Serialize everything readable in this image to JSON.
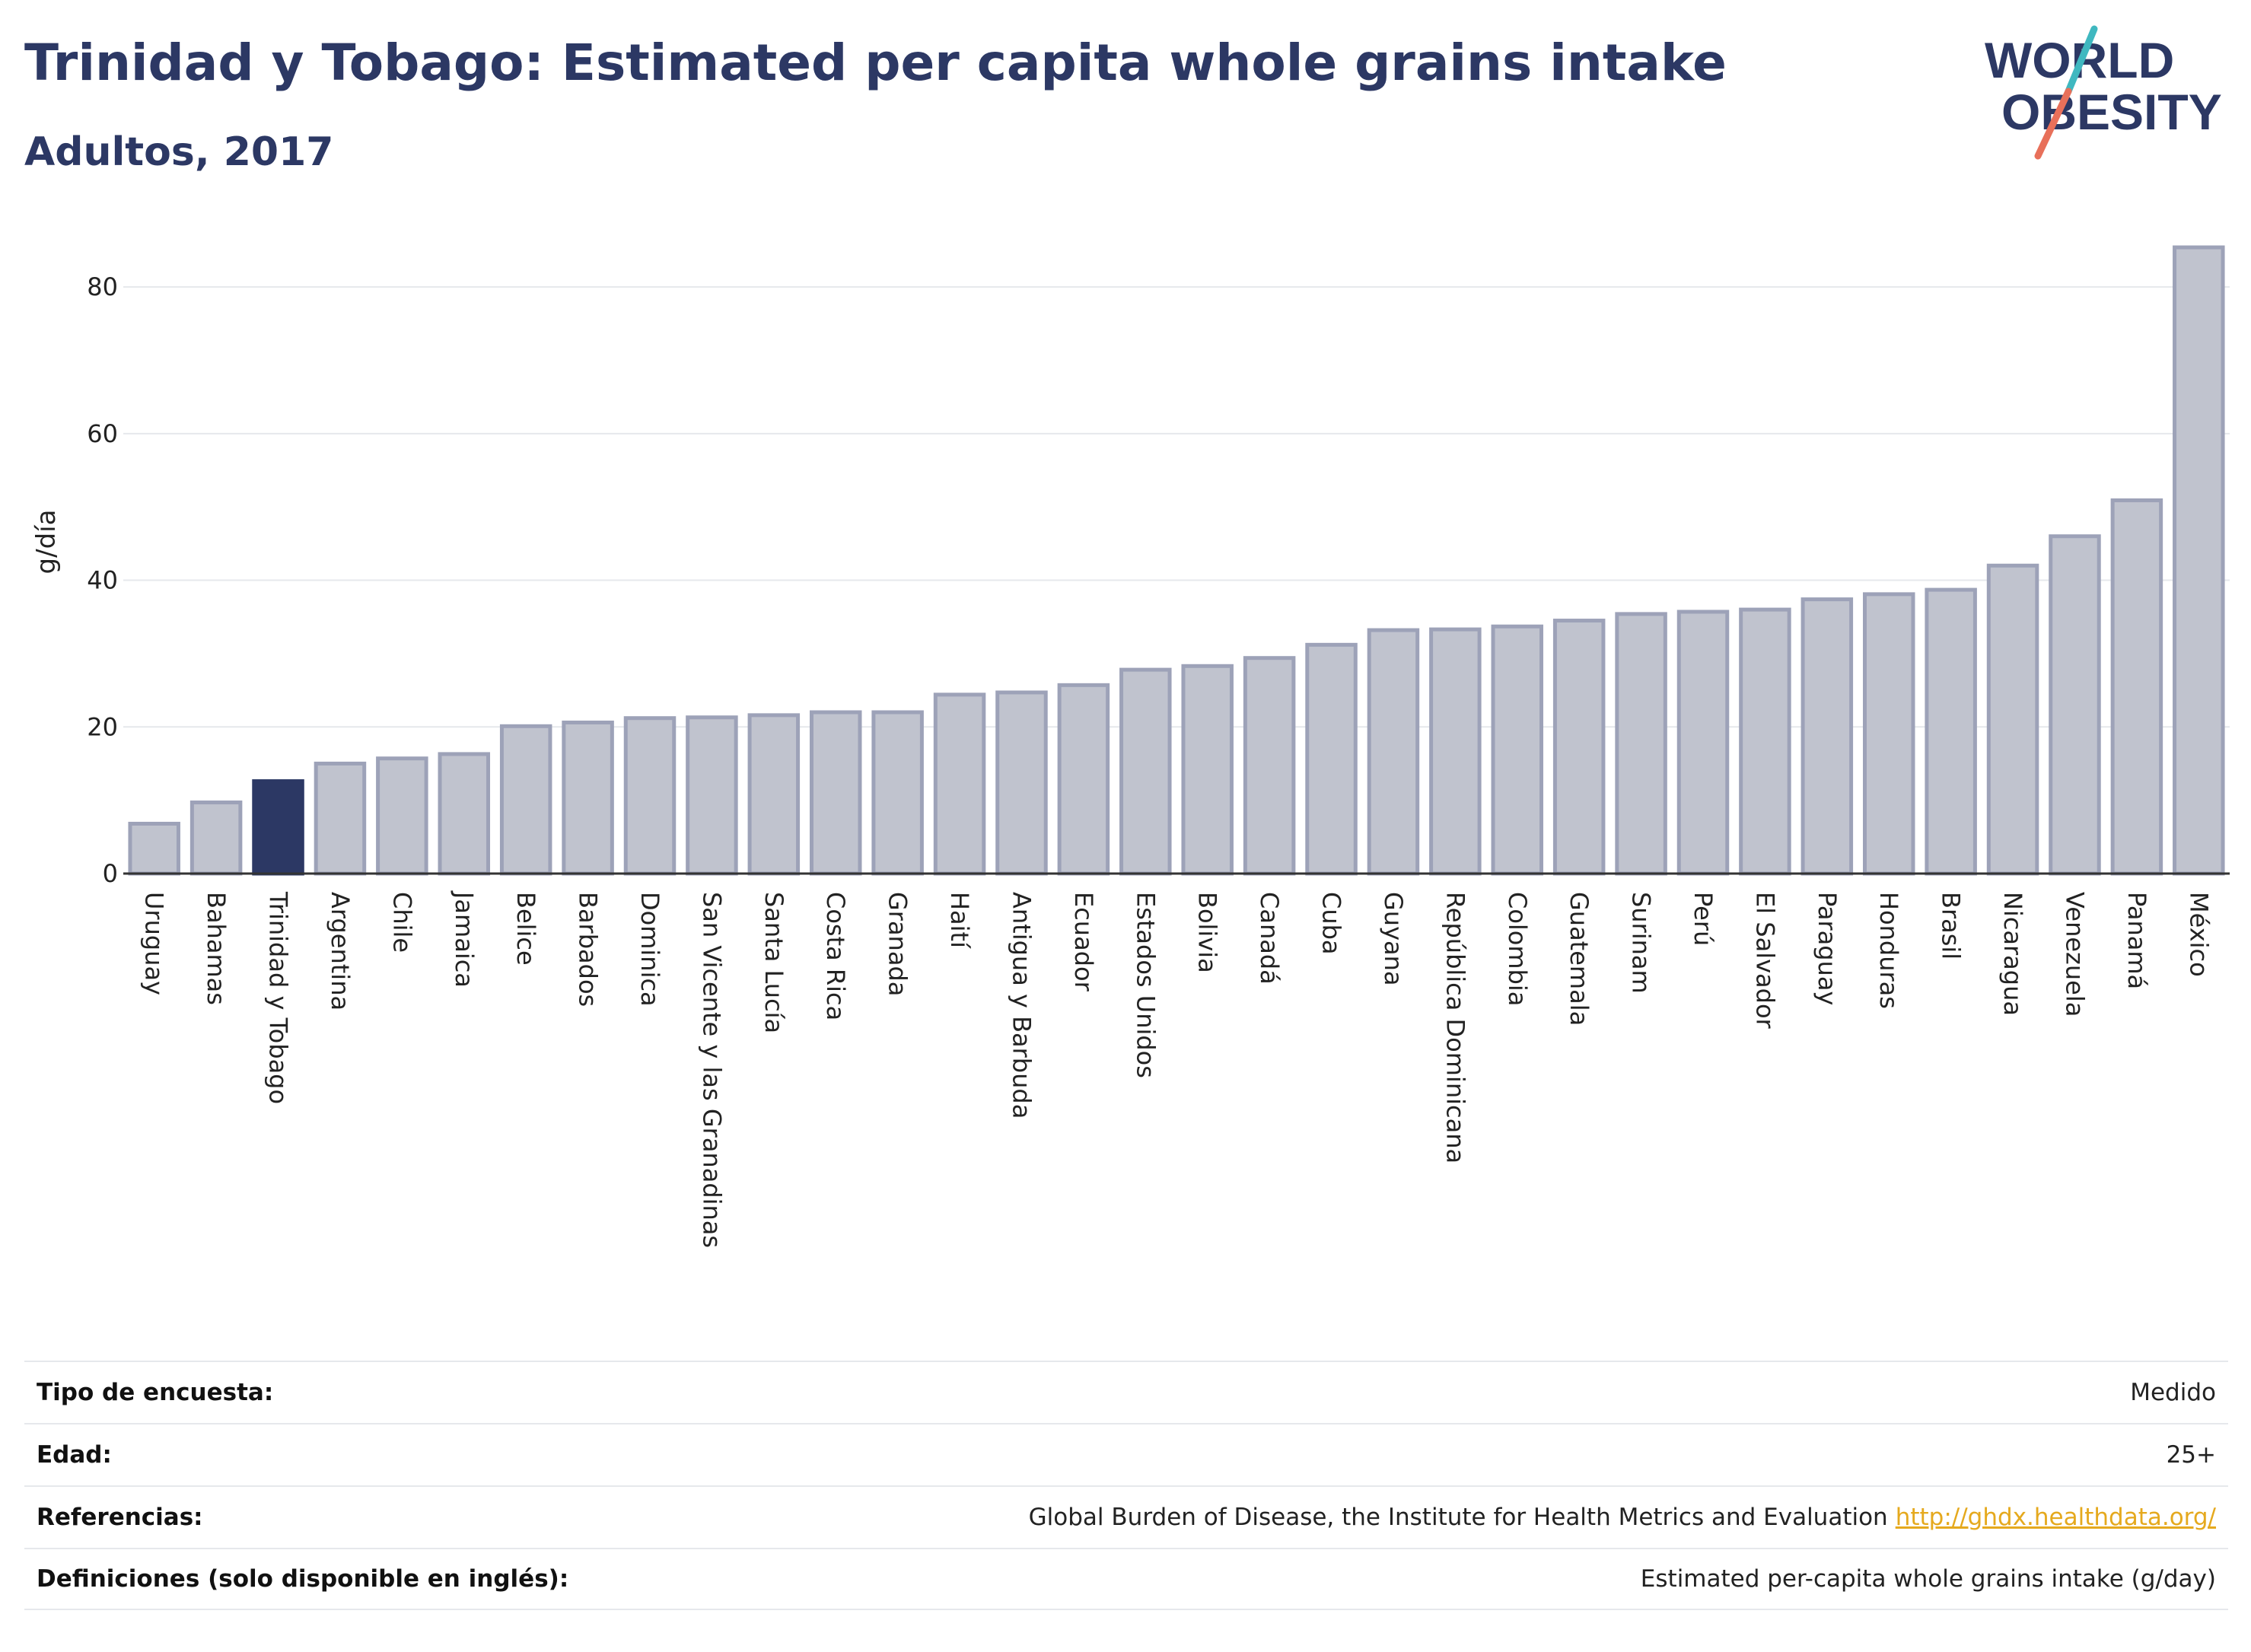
{
  "header": {
    "title": "Trinidad y Tobago: Estimated per capita whole grains intake",
    "subtitle": "Adultos, 2017"
  },
  "logo": {
    "line1": "WORLD",
    "line2": "OBESITY",
    "colors": {
      "text": "#2c3864",
      "slash_top": "#3fb8c0",
      "slash_bottom": "#e8705a"
    }
  },
  "chart_data": {
    "type": "bar",
    "ylabel": "g/día",
    "xlabel": "",
    "ylim": [
      0,
      88
    ],
    "yticks": [
      0,
      20,
      40,
      60,
      80
    ],
    "grid": true,
    "highlight": "Trinidad y Tobago",
    "colors": {
      "bar": "#c0c3ce",
      "bar_border": "#9da2b8",
      "highlight": "#2c3864",
      "grid": "#e6e8ec",
      "axis": "#333333"
    },
    "categories": [
      "Uruguay",
      "Bahamas",
      "Trinidad y Tobago",
      "Argentina",
      "Chile",
      "Jamaica",
      "Belice",
      "Barbados",
      "Dominica",
      "San Vicente y las Granadinas",
      "Santa Lucía",
      "Costa Rica",
      "Granada",
      "Haití",
      "Antigua y Barbuda",
      "Ecuador",
      "Estados Unidos",
      "Bolivia",
      "Canadá",
      "Cuba",
      "Guyana",
      "República Dominicana",
      "Colombia",
      "Guatemala",
      "Surinam",
      "Perú",
      "El Salvador",
      "Paraguay",
      "Honduras",
      "Brasil",
      "Nicaragua",
      "Venezuela",
      "Panamá",
      "México"
    ],
    "values": [
      6.8,
      9.7,
      12.6,
      15.0,
      15.7,
      16.3,
      20.1,
      20.6,
      21.2,
      21.3,
      21.6,
      22.0,
      22.0,
      24.4,
      24.7,
      25.7,
      27.8,
      28.3,
      29.4,
      31.2,
      33.2,
      33.3,
      33.7,
      34.5,
      35.4,
      35.7,
      36.0,
      37.4,
      38.1,
      38.7,
      42.0,
      46.0,
      50.9,
      85.4
    ]
  },
  "info": {
    "rows": [
      {
        "label": "Tipo de encuesta:",
        "value": "Medido",
        "link": ""
      },
      {
        "label": "Edad:",
        "value": "25+",
        "link": ""
      },
      {
        "label": "Referencias:",
        "value": "Global Burden of Disease, the Institute for Health Metrics and Evaluation",
        "link": "http://ghdx.healthdata.org/"
      },
      {
        "label": "Definiciones (solo disponible en inglés):",
        "value": "Estimated per-capita whole grains intake (g/day)",
        "link": ""
      }
    ]
  }
}
